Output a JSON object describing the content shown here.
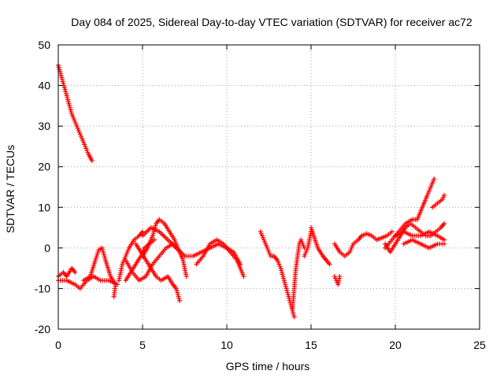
{
  "chart_data": {
    "type": "scatter",
    "title": "Day 084 of 2025, Sidereal Day-to-day VTEC variation (SDTVAR) for receiver ac72",
    "xlabel": "GPS time / hours",
    "ylabel": "SDTVAR / TECUs",
    "xlim": [
      0,
      25
    ],
    "ylim": [
      -20,
      50
    ],
    "xticks": [
      0,
      5,
      10,
      15,
      20,
      25
    ],
    "yticks": [
      -20,
      -10,
      0,
      10,
      20,
      30,
      40,
      50
    ],
    "grid": true,
    "legend": "none",
    "marker": "+",
    "series": [
      {
        "name": "SDTVAR",
        "color": "#ff0000",
        "segments": [
          [
            [
              0.0,
              45
            ],
            [
              0.2,
              42
            ],
            [
              0.4,
              39
            ],
            [
              0.6,
              36
            ],
            [
              0.8,
              33
            ],
            [
              1.0,
              31
            ],
            [
              1.2,
              29
            ],
            [
              1.4,
              27
            ],
            [
              1.6,
              25
            ],
            [
              1.8,
              23
            ],
            [
              2.0,
              21.5
            ]
          ],
          [
            [
              0.0,
              -7
            ],
            [
              0.3,
              -6
            ],
            [
              0.5,
              -7
            ],
            [
              0.8,
              -5
            ],
            [
              1.0,
              -6
            ]
          ],
          [
            [
              0.0,
              -8
            ],
            [
              0.5,
              -8
            ],
            [
              1.0,
              -9
            ],
            [
              1.3,
              -10
            ],
            [
              1.7,
              -8
            ],
            [
              2.1,
              -7
            ],
            [
              2.5,
              -8
            ],
            [
              3.0,
              -8
            ],
            [
              3.5,
              -9
            ]
          ],
          [
            [
              1.5,
              -8
            ],
            [
              1.9,
              -7
            ],
            [
              2.2,
              -3
            ],
            [
              2.4,
              -0.5
            ],
            [
              2.6,
              0
            ],
            [
              2.8,
              -3
            ],
            [
              3.1,
              -7
            ],
            [
              3.4,
              -9
            ],
            [
              3.3,
              -12
            ]
          ],
          [
            [
              3.6,
              -8
            ],
            [
              3.8,
              -4
            ],
            [
              4.0,
              -2
            ],
            [
              4.2,
              0
            ],
            [
              4.5,
              2
            ],
            [
              4.8,
              3
            ],
            [
              5.0,
              4
            ]
          ],
          [
            [
              4.0,
              -8
            ],
            [
              4.3,
              -6
            ],
            [
              4.6,
              -4
            ],
            [
              4.9,
              -2
            ],
            [
              5.1,
              0
            ],
            [
              5.4,
              1
            ],
            [
              5.7,
              2
            ]
          ],
          [
            [
              4.0,
              -3
            ],
            [
              4.4,
              -6
            ],
            [
              4.8,
              -8
            ],
            [
              5.2,
              -7
            ],
            [
              5.6,
              -4
            ],
            [
              6.0,
              -2
            ],
            [
              6.4,
              0
            ],
            [
              6.8,
              1
            ],
            [
              7.0,
              0
            ]
          ],
          [
            [
              5.0,
              -2
            ],
            [
              5.3,
              0
            ],
            [
              5.6,
              3
            ],
            [
              5.8,
              6
            ],
            [
              6.0,
              7
            ],
            [
              6.3,
              6
            ],
            [
              6.6,
              4
            ],
            [
              6.9,
              2
            ],
            [
              7.1,
              0
            ],
            [
              7.4,
              -3
            ],
            [
              7.6,
              -7
            ]
          ],
          [
            [
              4.6,
              1
            ],
            [
              4.9,
              -1
            ],
            [
              5.2,
              -3
            ],
            [
              5.5,
              -5
            ],
            [
              5.8,
              -7
            ],
            [
              6.1,
              -8
            ],
            [
              6.5,
              -7
            ],
            [
              6.8,
              -9
            ],
            [
              7.0,
              -10
            ],
            [
              7.2,
              -13
            ]
          ],
          [
            [
              5.0,
              3
            ],
            [
              5.5,
              5
            ],
            [
              6.0,
              4
            ],
            [
              6.5,
              2
            ],
            [
              7.0,
              0
            ],
            [
              7.5,
              -2
            ],
            [
              8.0,
              -2
            ],
            [
              8.5,
              -1
            ],
            [
              9.0,
              0
            ],
            [
              9.5,
              1
            ],
            [
              10.0,
              0
            ],
            [
              10.4,
              -1
            ],
            [
              10.8,
              -4
            ]
          ],
          [
            [
              8.2,
              -4
            ],
            [
              8.6,
              -2
            ],
            [
              9.0,
              1
            ],
            [
              9.4,
              2
            ],
            [
              9.8,
              1
            ],
            [
              10.2,
              -1
            ],
            [
              10.6,
              -3
            ],
            [
              11.0,
              -7
            ]
          ],
          [
            [
              12.0,
              4
            ],
            [
              12.2,
              2
            ],
            [
              12.4,
              0
            ],
            [
              12.6,
              -2
            ],
            [
              12.8,
              -2
            ],
            [
              13.0,
              -3
            ],
            [
              13.2,
              -5
            ],
            [
              13.4,
              -8
            ],
            [
              13.6,
              -11
            ],
            [
              13.8,
              -14
            ],
            [
              14.0,
              -17
            ]
          ],
          [
            [
              13.9,
              -15
            ],
            [
              14.0,
              -10
            ],
            [
              14.1,
              -5
            ],
            [
              14.2,
              -2
            ],
            [
              14.3,
              1
            ],
            [
              14.4,
              2
            ],
            [
              14.6,
              0
            ]
          ],
          [
            [
              14.6,
              -2
            ],
            [
              14.8,
              0
            ],
            [
              15.0,
              4
            ]
          ],
          [
            [
              15.0,
              5
            ],
            [
              15.4,
              0
            ],
            [
              15.7,
              -2
            ],
            [
              15.9,
              -3
            ],
            [
              16.1,
              -4
            ]
          ],
          [
            [
              16.4,
              -7
            ],
            [
              16.5,
              -8
            ],
            [
              16.6,
              -9
            ],
            [
              16.7,
              -7
            ]
          ],
          [
            [
              16.4,
              1
            ],
            [
              16.7,
              -1
            ],
            [
              17.0,
              -2
            ],
            [
              17.3,
              -1
            ],
            [
              17.5,
              1
            ],
            [
              17.8,
              2
            ],
            [
              18.0,
              3
            ],
            [
              18.3,
              3.5
            ],
            [
              18.6,
              3
            ],
            [
              18.9,
              2
            ],
            [
              19.2,
              2.5
            ],
            [
              19.5,
              3
            ],
            [
              19.8,
              4
            ]
          ],
          [
            [
              19.4,
              1
            ],
            [
              19.7,
              -1
            ],
            [
              20.0,
              1
            ],
            [
              20.3,
              3
            ],
            [
              20.6,
              5
            ],
            [
              20.9,
              6
            ],
            [
              21.2,
              5
            ],
            [
              21.5,
              4
            ],
            [
              21.8,
              3
            ],
            [
              22.1,
              3
            ],
            [
              22.4,
              4
            ],
            [
              22.7,
              5
            ],
            [
              22.9,
              6
            ]
          ],
          [
            [
              19.4,
              0
            ],
            [
              19.8,
              2
            ],
            [
              20.2,
              4
            ],
            [
              20.6,
              6
            ],
            [
              21.0,
              7
            ],
            [
              21.3,
              7
            ],
            [
              21.6,
              10
            ],
            [
              21.9,
              13
            ],
            [
              22.1,
              15
            ],
            [
              22.3,
              17
            ]
          ],
          [
            [
              20.0,
              3
            ],
            [
              20.5,
              4
            ],
            [
              21.0,
              3
            ],
            [
              21.5,
              3
            ],
            [
              22.0,
              4
            ],
            [
              22.5,
              3
            ],
            [
              22.9,
              2
            ]
          ],
          [
            [
              22.2,
              10
            ],
            [
              22.5,
              11
            ],
            [
              22.8,
              12
            ],
            [
              22.9,
              13
            ]
          ],
          [
            [
              20.5,
              1
            ],
            [
              21.0,
              2
            ],
            [
              21.5,
              1
            ],
            [
              22.0,
              0
            ],
            [
              22.5,
              1
            ],
            [
              22.9,
              1
            ]
          ]
        ]
      }
    ]
  }
}
